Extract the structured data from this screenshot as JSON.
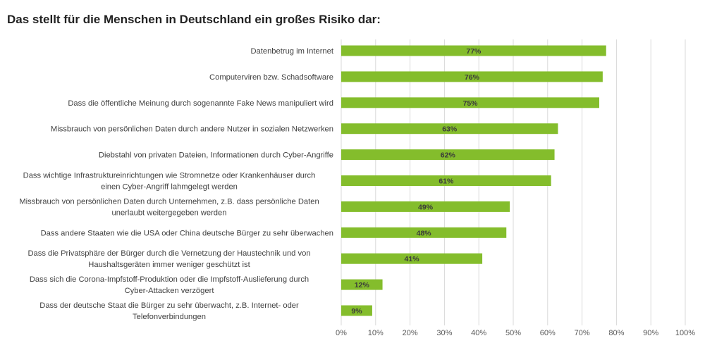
{
  "chart_data": {
    "type": "bar",
    "orientation": "horizontal",
    "title": "Das stellt für die Menschen in Deutschland ein großes Risiko dar:",
    "categories": [
      [
        "Datenbetrug im Internet"
      ],
      [
        "Computerviren bzw. Schadsoftware"
      ],
      [
        "Dass die öffentliche Meinung durch sogenannte Fake News manipuliert wird"
      ],
      [
        "Missbrauch von persönlichen Daten durch andere Nutzer in sozialen Netzwerken"
      ],
      [
        "Diebstahl von privaten Dateien, Informationen durch Cyber-Angriffe"
      ],
      [
        "Dass wichtige Infrastruktureinrichtungen wie Stromnetze oder Krankenhäuser durch",
        "einen Cyber-Angriff lahmgelegt werden"
      ],
      [
        "Missbrauch von persönlichen Daten durch Unternehmen, z.B. dass persönliche Daten",
        "unerlaubt weitergegeben werden"
      ],
      [
        "Dass andere Staaten wie die USA oder China deutsche Bürger zu sehr überwachen"
      ],
      [
        "Dass die Privatsphäre der Bürger durch die Vernetzung der Haustechnik und von",
        "Haushaltsgeräten immer weniger geschützt ist"
      ],
      [
        "Dass sich die Corona-Impfstoff-Produktion oder die Impfstoff-Auslieferung durch",
        "Cyber-Attacken verzögert"
      ],
      [
        "Dass der deutsche Staat die Bürger zu sehr überwacht, z.B. Internet- oder",
        "Telefonverbindungen"
      ]
    ],
    "values": [
      77,
      76,
      75,
      63,
      62,
      61,
      49,
      48,
      41,
      12,
      9
    ],
    "value_labels": [
      "77%",
      "76%",
      "75%",
      "63%",
      "62%",
      "61%",
      "49%",
      "48%",
      "41%",
      "12%",
      "9%"
    ],
    "xlim": [
      0,
      100
    ],
    "xticks": [
      "0%",
      "10%",
      "20%",
      "30%",
      "40%",
      "50%",
      "60%",
      "70%",
      "80%",
      "90%",
      "100%"
    ],
    "grid": "vertical",
    "legend": "none",
    "colors": {
      "bar": "#84bd2c",
      "grid": "#d9d9d9",
      "text": "#404040"
    }
  }
}
